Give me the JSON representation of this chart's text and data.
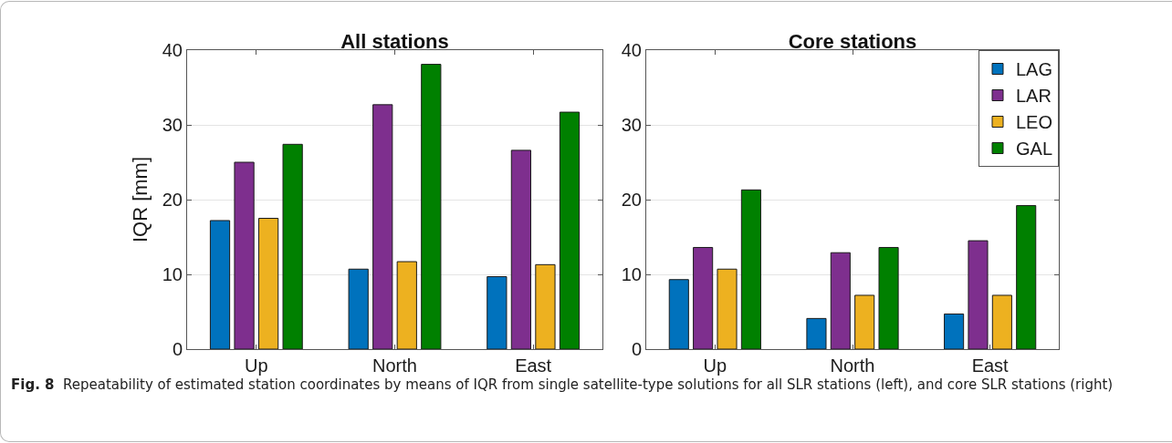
{
  "chart_data": [
    {
      "type": "bar",
      "title": "All stations",
      "ylabel": "IQR [mm]",
      "categories": [
        "Up",
        "North",
        "East"
      ],
      "series": [
        {
          "color": "#0072bd",
          "values": [
            17.2,
            10.7,
            9.7
          ]
        },
        {
          "color": "#7e2f8e",
          "values": [
            25.0,
            32.7,
            26.6
          ]
        },
        {
          "color": "#edb120",
          "values": [
            17.5,
            11.7,
            11.3
          ]
        },
        {
          "color": "#008000",
          "values": [
            27.4,
            38.1,
            31.7
          ]
        }
      ],
      "ylim": [
        0,
        40
      ],
      "yticks": [
        0,
        10,
        20,
        30,
        40
      ],
      "grid": "y",
      "annotations": [
        "Fig. 8 Repeatability of estimated station coordinates by means of IQR from single satellite-type solutions for all SLR stations (left), and core SLR stations (right)"
      ]
    },
    {
      "type": "bar",
      "title": "Core stations",
      "categories": [
        "Up",
        "North",
        "East"
      ],
      "series": [
        {
          "name": "LAG",
          "color": "#0072bd",
          "values": [
            9.3,
            4.1,
            4.7
          ]
        },
        {
          "name": "LAR",
          "color": "#7e2f8e",
          "values": [
            13.6,
            12.9,
            14.5
          ]
        },
        {
          "name": "LEO",
          "color": "#edb120",
          "values": [
            10.7,
            7.2,
            7.2
          ]
        },
        {
          "name": "GAL",
          "color": "#008000",
          "values": [
            21.3,
            13.6,
            19.2
          ]
        }
      ],
      "ylim": [
        0,
        40
      ],
      "yticks": [
        0,
        10,
        20,
        30,
        40
      ],
      "grid": "y",
      "legend": "top right"
    }
  ]
}
